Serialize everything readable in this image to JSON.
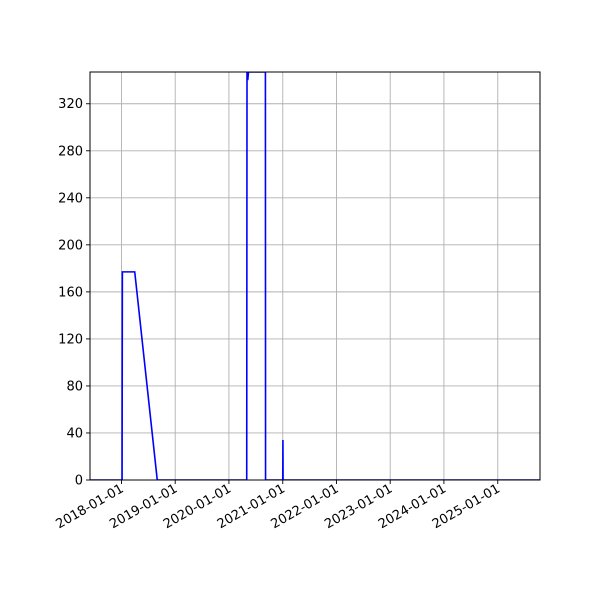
{
  "chart_data": {
    "type": "line",
    "title": "",
    "xlabel": "",
    "ylabel": "",
    "grid": true,
    "x_axis": {
      "type": "date",
      "range": [
        "2017-06-01",
        "2025-10-15"
      ],
      "ticks": [
        "2018-01-01",
        "2019-01-01",
        "2020-01-01",
        "2021-01-01",
        "2022-01-01",
        "2023-01-01",
        "2024-01-01",
        "2025-01-01"
      ]
    },
    "y_axis": {
      "range": [
        0,
        347
      ],
      "ticks": [
        0,
        40,
        80,
        120,
        160,
        200,
        240,
        280,
        320
      ]
    },
    "series": [
      {
        "color": "#0000ff",
        "points": [
          [
            "2017-06-01",
            0
          ],
          [
            "2018-01-01",
            0
          ],
          [
            "2018-01-05",
            0
          ],
          [
            "2018-01-07",
            177
          ],
          [
            "2018-04-01",
            177
          ],
          [
            "2018-09-01",
            0
          ],
          [
            "2020-05-01",
            0
          ],
          [
            "2020-05-03",
            347
          ],
          [
            "2020-05-08",
            340
          ],
          [
            "2020-05-13",
            347
          ],
          [
            "2020-09-05",
            347
          ],
          [
            "2020-09-06",
            0
          ],
          [
            "2021-01-01",
            0
          ],
          [
            "2021-01-02",
            34
          ],
          [
            "2021-01-03",
            0
          ],
          [
            "2025-10-15",
            0
          ]
        ]
      }
    ]
  }
}
